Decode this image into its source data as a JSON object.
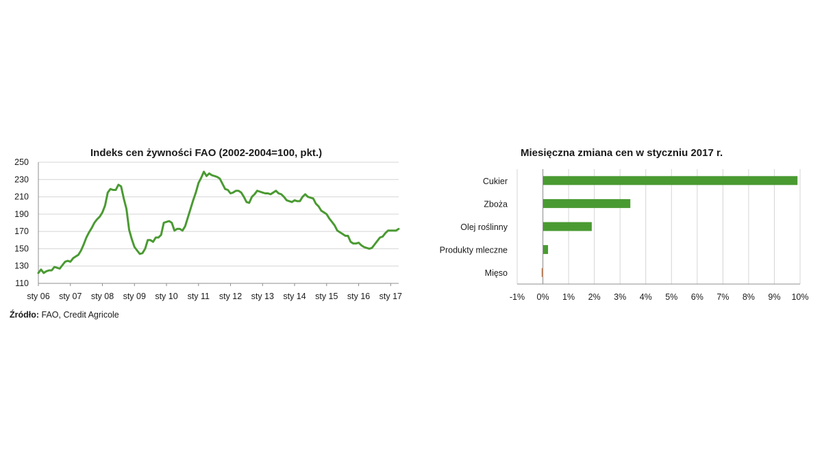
{
  "chart_data": [
    {
      "type": "line",
      "title": "Indeks cen żywności  FAO (2002-2004=100, pkt.)",
      "ylim": [
        110,
        250
      ],
      "y_ticks": [
        "250",
        "230",
        "210",
        "190",
        "170",
        "150",
        "130",
        "110"
      ],
      "x_ticks": [
        "sty 06",
        "sty 07",
        "sty 08",
        "sty 09",
        "sty 10",
        "sty 11",
        "sty 12",
        "sty 13",
        "sty 14",
        "sty 15",
        "sty 16",
        "sty 17"
      ],
      "grid": true,
      "color": "#4a9a32",
      "series": [
        {
          "start": "2006-01",
          "values": [
            122,
            126,
            122,
            124,
            125,
            125,
            129,
            128,
            127,
            131,
            135,
            136,
            135,
            139,
            141,
            143,
            148,
            155,
            163,
            169,
            174,
            180,
            184,
            187,
            192,
            200,
            215,
            219,
            218,
            218,
            224,
            222,
            208,
            196,
            172,
            161,
            152,
            148,
            144,
            145,
            150,
            160,
            160,
            158,
            163,
            163,
            166,
            180,
            181,
            182,
            180,
            171,
            173,
            173,
            171,
            176,
            186,
            196,
            206,
            215,
            226,
            232,
            239,
            234,
            237,
            235,
            234,
            233,
            231,
            225,
            219,
            218,
            214,
            215,
            217,
            217,
            215,
            210,
            204,
            203,
            210,
            213,
            217,
            216,
            215,
            214,
            214,
            213,
            215,
            217,
            214,
            213,
            210,
            206,
            205,
            204,
            206,
            205,
            205,
            210,
            213,
            210,
            209,
            208,
            202,
            199,
            194,
            192,
            190,
            185,
            181,
            177,
            171,
            169,
            167,
            165,
            165,
            158,
            156,
            156,
            157,
            154,
            152,
            151,
            150,
            151,
            155,
            159,
            163,
            164,
            168,
            171,
            171,
            171,
            171,
            173
          ]
        }
      ]
    },
    {
      "type": "bar",
      "orientation": "horizontal",
      "title": "Miesięczna zmiana  cen w styczniu 2017 r.",
      "categories": [
        "Cukier",
        "Zboża",
        "Olej roślinny",
        "Produkty mleczne",
        "Mięso"
      ],
      "values": [
        9.9,
        3.4,
        1.9,
        0.2,
        -0.05
      ],
      "xlim": [
        -1,
        10
      ],
      "x_ticks": [
        "-1%",
        "0%",
        "1%",
        "2%",
        "3%",
        "4%",
        "5%",
        "6%",
        "7%",
        "8%",
        "9%",
        "10%"
      ],
      "grid": true,
      "colors": {
        "positive": "#4a9a32",
        "negative": "#e07a3a"
      }
    }
  ],
  "source": {
    "label": "Źródło:",
    "text": " FAO, Credit Agricole"
  }
}
